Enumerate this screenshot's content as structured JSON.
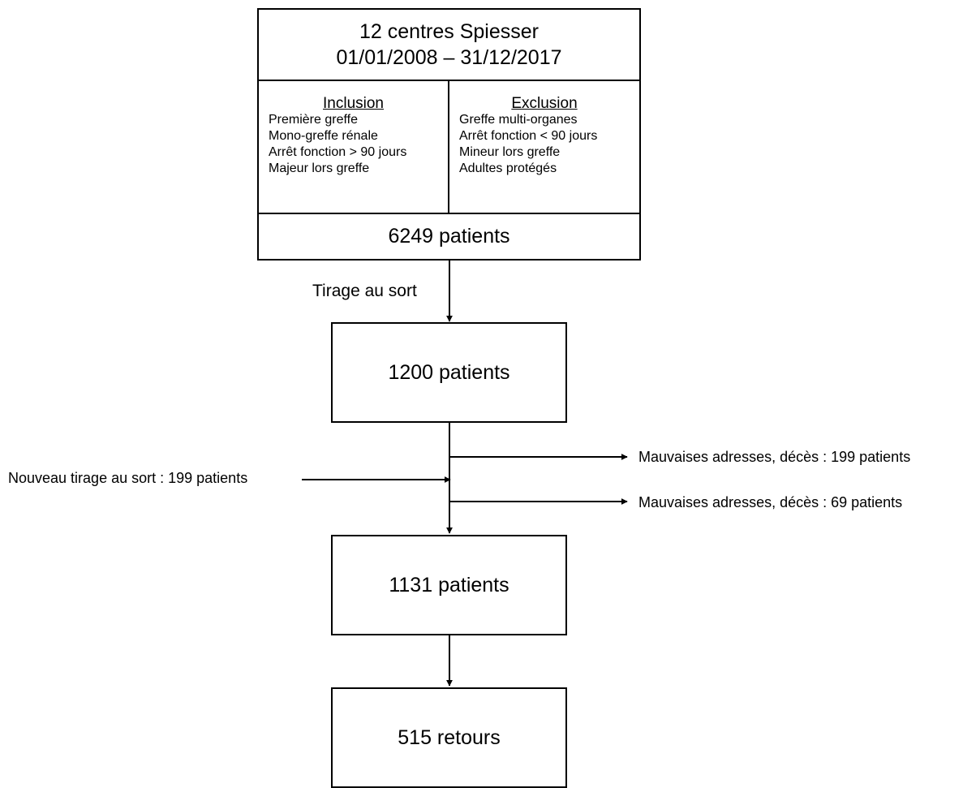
{
  "top": {
    "title_line1": "12 centres Spiesser",
    "title_line2": "01/01/2008 – 31/12/2017",
    "inclusion": {
      "heading": "Inclusion",
      "items": [
        "Première greffe",
        "Mono-greffe rénale",
        "Arrêt fonction > 90 jours",
        "Majeur lors greffe"
      ]
    },
    "exclusion": {
      "heading": "Exclusion",
      "items": [
        "Greffe multi-organes",
        "Arrêt fonction < 90 jours",
        "Mineur lors greffe",
        "Adultes protégés"
      ]
    },
    "count": "6249 patients"
  },
  "step1_label": "Tirage au sort",
  "box_1200": "1200 patients",
  "side_out_1": "Mauvaises adresses, décès : 199 patients",
  "side_in": "Nouveau tirage au sort : 199 patients",
  "side_out_2": "Mauvaises adresses, décès : 69 patients",
  "box_1131": "1131 patients",
  "box_515": "515 retours"
}
